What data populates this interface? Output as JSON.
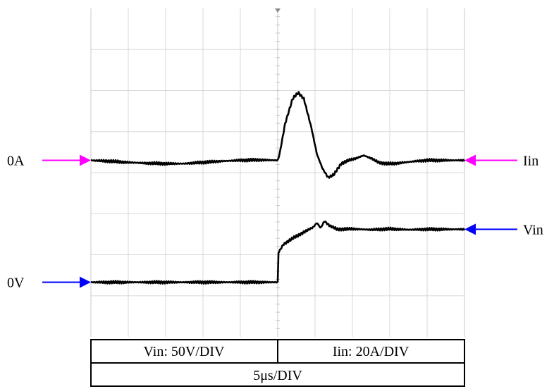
{
  "chart_data": {
    "type": "line",
    "grid": true,
    "divisions": {
      "x": 10,
      "y": 8
    },
    "x_range_div": [
      0,
      10
    ],
    "y_range_div": [
      0,
      8
    ],
    "series": [
      {
        "name": "Iin",
        "color": "#000000",
        "ref_div": 4.3,
        "points": [
          [
            0,
            4.3
          ],
          [
            0.5,
            4.28
          ],
          [
            1,
            4.25
          ],
          [
            1.5,
            4.23
          ],
          [
            2,
            4.22
          ],
          [
            2.5,
            4.22
          ],
          [
            3,
            4.25
          ],
          [
            3.5,
            4.28
          ],
          [
            4,
            4.3
          ],
          [
            4.5,
            4.31
          ],
          [
            5,
            4.3
          ],
          [
            5.05,
            4.45
          ],
          [
            5.2,
            5.2
          ],
          [
            5.4,
            5.8
          ],
          [
            5.55,
            5.95
          ],
          [
            5.7,
            5.8
          ],
          [
            5.9,
            5.1
          ],
          [
            6.05,
            4.45
          ],
          [
            6.2,
            4.1
          ],
          [
            6.35,
            3.88
          ],
          [
            6.5,
            3.95
          ],
          [
            6.7,
            4.22
          ],
          [
            6.9,
            4.3
          ],
          [
            7.1,
            4.35
          ],
          [
            7.3,
            4.42
          ],
          [
            7.5,
            4.35
          ],
          [
            7.7,
            4.25
          ],
          [
            7.9,
            4.22
          ],
          [
            8.1,
            4.22
          ],
          [
            8.4,
            4.25
          ],
          [
            8.7,
            4.28
          ],
          [
            9,
            4.3
          ],
          [
            9.5,
            4.3
          ],
          [
            10,
            4.3
          ]
        ]
      },
      {
        "name": "Vin",
        "color": "#000000",
        "ref_div": 1.33,
        "points": [
          [
            0,
            1.33
          ],
          [
            2,
            1.33
          ],
          [
            4,
            1.33
          ],
          [
            5,
            1.33
          ],
          [
            5.02,
            2.05
          ],
          [
            5.15,
            2.25
          ],
          [
            5.4,
            2.4
          ],
          [
            5.7,
            2.55
          ],
          [
            5.95,
            2.67
          ],
          [
            6.05,
            2.78
          ],
          [
            6.15,
            2.65
          ],
          [
            6.25,
            2.82
          ],
          [
            6.4,
            2.7
          ],
          [
            6.6,
            2.62
          ],
          [
            7,
            2.63
          ],
          [
            7.5,
            2.61
          ],
          [
            8,
            2.63
          ],
          [
            8.5,
            2.61
          ],
          [
            9,
            2.62
          ],
          [
            10,
            2.62
          ]
        ]
      }
    ],
    "markers": [
      {
        "id": "iin-ref-left",
        "label": "0A",
        "side": "left",
        "y_div": 4.3,
        "color": "#ff00ff"
      },
      {
        "id": "iin-right",
        "label": "Iin",
        "side": "right",
        "y_div": 4.3,
        "color": "#ff00ff"
      },
      {
        "id": "vin-right",
        "label": "Vin",
        "side": "right",
        "y_div": 2.62,
        "color": "#0000ff"
      },
      {
        "id": "vin-ref-left",
        "label": "0V",
        "side": "left",
        "y_div": 1.33,
        "color": "#0000ff"
      }
    ],
    "trigger_x_div": 5,
    "scale_table": {
      "vin_scale": "Vin: 50V/DIV",
      "iin_scale": "Iin: 20A/DIV",
      "time_scale": "5μs/DIV"
    }
  }
}
